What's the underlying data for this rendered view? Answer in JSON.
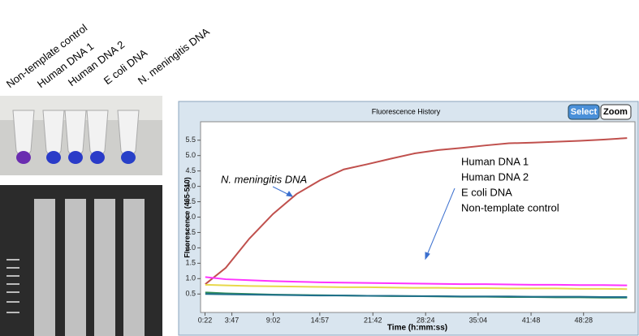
{
  "sample_labels": [
    "Non-template control",
    "Human DNA 1",
    "Human DNA 2",
    "E coli DNA",
    "N. meningitis DNA"
  ],
  "chart_data": {
    "type": "line",
    "title": "Fluorescence History",
    "buttons": [
      "Select",
      "Zoom"
    ],
    "x_label": "Time (h:mm:ss)",
    "y_label": "Fluorescence (465-510)",
    "annotations": [
      "N. meningitis DNA",
      "Human DNA 1",
      "Human DNA  2",
      "E coli DNA",
      "Non-template control"
    ],
    "x": [
      0.4,
      3,
      6,
      9,
      12,
      15,
      18,
      21,
      24,
      27,
      30,
      33,
      36,
      39,
      42,
      45,
      48,
      51,
      54
    ],
    "series": [
      {
        "color": "#c0504d",
        "values": [
          0.82,
          1.35,
          2.3,
          3.1,
          3.75,
          4.2,
          4.55,
          4.72,
          4.9,
          5.07,
          5.18,
          5.25,
          5.33,
          5.4,
          5.42,
          5.45,
          5.48,
          5.52,
          5.57
        ]
      },
      {
        "color": "#ff33ff",
        "values": [
          1.05,
          0.98,
          0.95,
          0.92,
          0.9,
          0.88,
          0.87,
          0.86,
          0.85,
          0.84,
          0.83,
          0.82,
          0.82,
          0.81,
          0.8,
          0.8,
          0.79,
          0.79,
          0.78
        ]
      },
      {
        "color": "#e8d84a",
        "values": [
          0.8,
          0.78,
          0.76,
          0.75,
          0.74,
          0.73,
          0.72,
          0.72,
          0.71,
          0.7,
          0.7,
          0.69,
          0.69,
          0.68,
          0.68,
          0.68,
          0.67,
          0.67,
          0.66
        ]
      },
      {
        "color": "#2e8b57",
        "values": [
          0.55,
          0.52,
          0.5,
          0.48,
          0.47,
          0.46,
          0.45,
          0.44,
          0.43,
          0.43,
          0.42,
          0.41,
          0.41,
          0.4,
          0.4,
          0.39,
          0.39,
          0.38,
          0.38
        ]
      },
      {
        "color": "#1f6f8b",
        "values": [
          0.5,
          0.49,
          0.48,
          0.47,
          0.46,
          0.45,
          0.45,
          0.44,
          0.44,
          0.43,
          0.43,
          0.42,
          0.42,
          0.42,
          0.41,
          0.41,
          0.41,
          0.4,
          0.4
        ]
      }
    ],
    "xlim": [
      -0.2,
      55
    ],
    "ylim": [
      -0.1,
      6.1
    ],
    "xticks": [
      {
        "value": 0.367,
        "label": "0:22"
      },
      {
        "value": 3.78,
        "label": "3:47"
      },
      {
        "value": 9.03,
        "label": "9:02"
      },
      {
        "value": 14.95,
        "label": "14:57"
      },
      {
        "value": 21.7,
        "label": "21:42"
      },
      {
        "value": 28.4,
        "label": "28:24"
      },
      {
        "value": 35.07,
        "label": "35:04"
      },
      {
        "value": 41.8,
        "label": "41:48"
      },
      {
        "value": 48.47,
        "label": "48:28"
      }
    ],
    "yticks": [
      0.5,
      {
        "value": 1,
        "label": "1.0"
      },
      1.5,
      {
        "value": 2,
        "label": "2.0"
      },
      2.5,
      {
        "value": 3,
        "label": "3.0"
      },
      3.5,
      {
        "value": 4,
        "label": "4.0"
      },
      4.5,
      {
        "value": 5,
        "label": "5.0"
      },
      5.5
    ]
  }
}
